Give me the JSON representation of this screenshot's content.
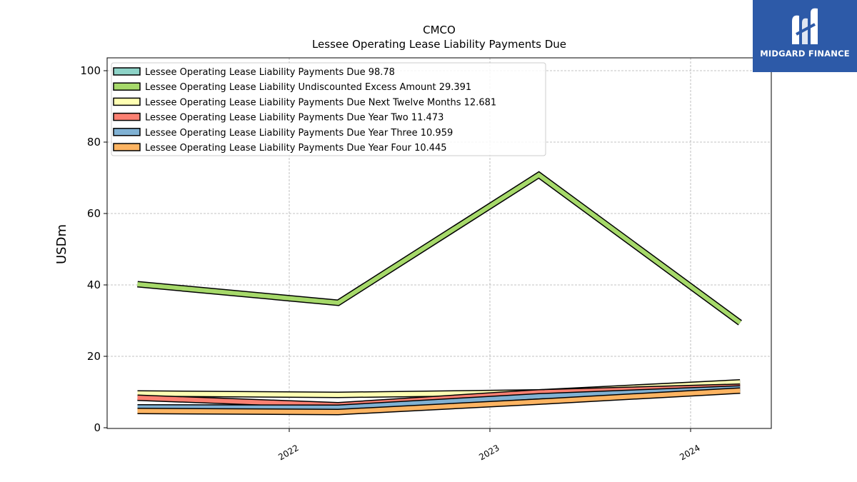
{
  "logo": {
    "name": "MIDGARD FINANCE"
  },
  "chart_data": {
    "type": "area",
    "title": "CMCO",
    "subtitle": "Lessee Operating Lease Liability Payments Due",
    "ylabel": "USDm",
    "xlabel": "",
    "x": [
      "2021-03-31",
      "2022-03-31",
      "2023-03-31",
      "2024-03-31"
    ],
    "xticks": [
      "2022",
      "2023",
      "2024"
    ],
    "yticks": [
      0,
      20,
      40,
      60,
      80,
      100
    ],
    "ylim": [
      0,
      100
    ],
    "grid": true,
    "legend_position": "upper-left",
    "series": [
      {
        "name": "Lessee Operating Lease Liability Payments Due",
        "legend_value": "98.78",
        "color": "#8dd3c7",
        "values": [
          null,
          null,
          null,
          null
        ]
      },
      {
        "name": "Lessee Operating Lease Liability Undiscounted Excess Amount",
        "legend_value": "29.391",
        "color": "#a6d96a",
        "values": [
          40.2,
          35.0,
          70.8,
          29.4
        ]
      },
      {
        "name": "Lessee Operating Lease Liability Payments Due Next Twelve Months",
        "legend_value": "12.681",
        "color": "#ffffb3",
        "values": [
          9.6,
          9.2,
          9.9,
          12.7
        ]
      },
      {
        "name": "Lessee Operating Lease Liability Payments Due Year Two",
        "legend_value": "11.473",
        "color": "#fb8072",
        "values": [
          8.4,
          6.3,
          9.9,
          11.5
        ]
      },
      {
        "name": "Lessee Operating Lease Liability Payments Due Year Three",
        "legend_value": "10.959",
        "color": "#80b1d3",
        "values": [
          5.7,
          5.6,
          8.8,
          11.0
        ]
      },
      {
        "name": "Lessee Operating Lease Liability Payments Due Year Four",
        "legend_value": "10.445",
        "color": "#fdb462",
        "values": [
          4.7,
          4.4,
          7.3,
          10.4
        ]
      }
    ]
  }
}
